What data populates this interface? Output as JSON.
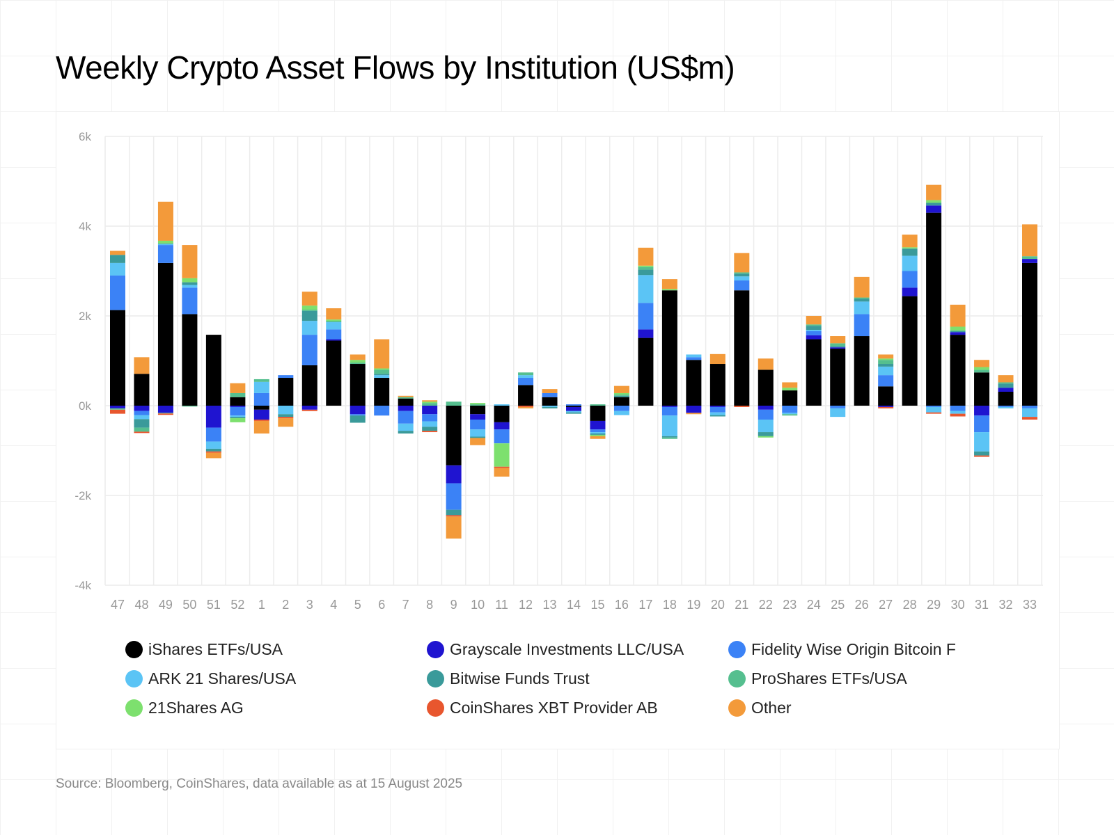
{
  "title": "Weekly Crypto Asset Flows by Institution (US$m)",
  "source": "Source: Bloomberg, CoinShares, data available as at 15 August 2025",
  "chart_data": {
    "type": "bar",
    "stacked": true,
    "title": "Weekly Crypto Asset Flows by Institution (US$m)",
    "xlabel": "",
    "ylabel": "",
    "ylim": [
      -4000,
      6000
    ],
    "yticks": [
      -4000,
      -2000,
      0,
      2000,
      4000,
      6000
    ],
    "ytick_labels": [
      "-4k",
      "-2k",
      "0k",
      "2k",
      "4k",
      "6k"
    ],
    "grid": true,
    "legend_position": "bottom",
    "categories": [
      "47",
      "48",
      "49",
      "50",
      "51",
      "52",
      "1",
      "2",
      "3",
      "4",
      "5",
      "6",
      "7",
      "8",
      "9",
      "10",
      "11",
      "12",
      "13",
      "14",
      "15",
      "16",
      "17",
      "18",
      "19",
      "20",
      "21",
      "22",
      "23",
      "24",
      "25",
      "26",
      "27",
      "28",
      "29",
      "30",
      "31",
      "32",
      "33"
    ],
    "series": [
      {
        "name": "iShares ETFs/USA",
        "color": "#000000",
        "values": [
          2130,
          710,
          3180,
          2040,
          1580,
          190,
          -90,
          620,
          900,
          1450,
          930,
          620,
          160,
          0,
          -1330,
          -190,
          -370,
          460,
          190,
          -30,
          -340,
          190,
          1510,
          2570,
          1020,
          930,
          2570,
          800,
          340,
          1480,
          1270,
          1550,
          430,
          2440,
          4300,
          1580,
          740,
          310,
          3180
        ]
      },
      {
        "name": "Grayscale Investments LLC/USA",
        "color": "#1f14d0",
        "values": [
          -60,
          -120,
          -160,
          0,
          -490,
          -30,
          -220,
          0,
          -90,
          30,
          -190,
          0,
          -120,
          -190,
          -400,
          -120,
          -160,
          0,
          0,
          -90,
          -190,
          0,
          190,
          -30,
          -160,
          -30,
          0,
          -90,
          0,
          90,
          30,
          0,
          -30,
          190,
          160,
          60,
          -220,
          90,
          90
        ]
      },
      {
        "name": "Fidelity Wise Origin Bitcoin F",
        "color": "#3b82f6",
        "values": [
          770,
          -90,
          400,
          590,
          -310,
          -190,
          280,
          60,
          680,
          220,
          -30,
          -220,
          -280,
          -160,
          -590,
          -220,
          -310,
          160,
          90,
          30,
          -60,
          -120,
          590,
          -190,
          60,
          -120,
          220,
          -220,
          -160,
          90,
          -60,
          490,
          250,
          370,
          -30,
          -120,
          -370,
          -30,
          -60
        ]
      },
      {
        "name": "ARK 21 Shares/USA",
        "color": "#5bc4f5",
        "values": [
          280,
          -90,
          20,
          60,
          -160,
          -30,
          250,
          -190,
          310,
          160,
          0,
          60,
          -160,
          -120,
          0,
          -160,
          30,
          60,
          -30,
          -30,
          -30,
          -90,
          620,
          -460,
          60,
          -60,
          90,
          -280,
          -30,
          30,
          -190,
          280,
          190,
          340,
          -120,
          -60,
          -430,
          -30,
          -190
        ]
      },
      {
        "name": "Bitwise Funds Trust",
        "color": "#3a9a9a",
        "values": [
          180,
          -190,
          15,
          60,
          -60,
          -30,
          0,
          -60,
          220,
          0,
          -160,
          30,
          -60,
          -90,
          -120,
          -30,
          0,
          0,
          -30,
          -30,
          -30,
          30,
          120,
          -30,
          0,
          -30,
          60,
          -90,
          0,
          90,
          30,
          60,
          60,
          160,
          60,
          30,
          -90,
          90,
          0
        ]
      },
      {
        "name": "ProShares ETFs/USA",
        "color": "#55bf8f",
        "values": [
          -30,
          -90,
          -15,
          -20,
          0,
          90,
          60,
          0,
          30,
          30,
          30,
          90,
          30,
          60,
          90,
          30,
          0,
          60,
          0,
          0,
          30,
          30,
          60,
          -30,
          0,
          0,
          30,
          0,
          -30,
          30,
          60,
          30,
          90,
          0,
          0,
          0,
          60,
          30,
          60
        ]
      },
      {
        "name": "21Shares AG",
        "color": "#7de06e",
        "values": [
          0,
          0,
          60,
          90,
          0,
          -90,
          0,
          0,
          90,
          30,
          60,
          30,
          0,
          30,
          0,
          30,
          -520,
          0,
          0,
          0,
          -30,
          30,
          30,
          30,
          0,
          0,
          0,
          -30,
          60,
          0,
          0,
          0,
          30,
          30,
          60,
          90,
          60,
          0,
          0
        ]
      },
      {
        "name": "CoinShares XBT Provider AB",
        "color": "#e8562e",
        "values": [
          -90,
          -30,
          -30,
          0,
          -30,
          0,
          -30,
          -30,
          -30,
          0,
          0,
          0,
          0,
          -30,
          -30,
          0,
          -30,
          -30,
          0,
          0,
          0,
          0,
          0,
          0,
          0,
          0,
          -30,
          0,
          0,
          0,
          0,
          0,
          -30,
          0,
          -30,
          -60,
          -30,
          0,
          -60
        ]
      },
      {
        "name": "Other",
        "color": "#f39a3a",
        "values": [
          90,
          370,
          870,
          740,
          -120,
          220,
          -280,
          -190,
          310,
          250,
          120,
          650,
          30,
          30,
          -490,
          -160,
          -190,
          -30,
          90,
          0,
          -60,
          160,
          400,
          220,
          -30,
          220,
          430,
          250,
          120,
          190,
          160,
          460,
          90,
          280,
          340,
          490,
          160,
          160,
          710
        ]
      }
    ]
  }
}
